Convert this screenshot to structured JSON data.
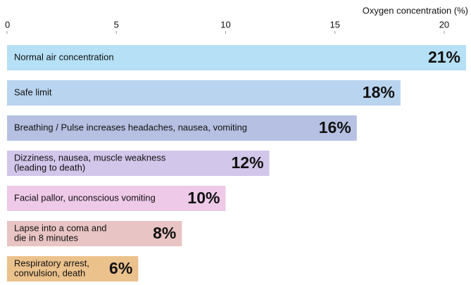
{
  "chart_data": {
    "type": "bar",
    "orientation": "horizontal",
    "x_axis_label": "Oxygen concentration (%)",
    "categories": [
      [
        "Normal air concentration"
      ],
      [
        "Safe limit"
      ],
      [
        "Breathing / Pulse  increases headaches, nausea, vomiting"
      ],
      [
        "Dizziness, nausea, muscle weakness",
        " (leading to death)"
      ],
      [
        "Facial pallor, unconscious vomiting"
      ],
      [
        "Lapse into a coma and",
        "die in 8 minutes"
      ],
      [
        "Respiratory arrest,",
        "convulsion, death"
      ]
    ],
    "values": [
      21,
      18,
      16,
      12,
      10,
      8,
      6
    ],
    "value_labels": [
      "21%",
      "18%",
      "16%",
      "12%",
      "10%",
      "8%",
      "6%"
    ],
    "colors": [
      "#b5e0f6",
      "#b9d4ef",
      "#b6c0e2",
      "#d2c6ea",
      "#eec9e8",
      "#e9c4c4",
      "#ebc18c"
    ],
    "xlim": [
      0,
      21
    ],
    "xticks": [
      0,
      5,
      10,
      15,
      20
    ]
  }
}
